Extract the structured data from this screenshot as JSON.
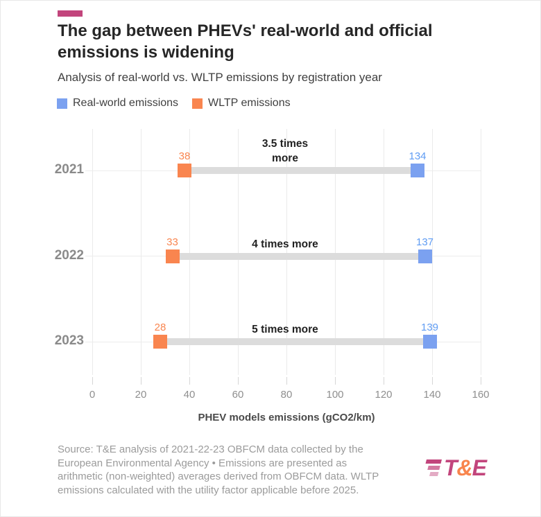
{
  "header": {
    "title": "The gap between PHEVs' real-world and official\nemissions is widening",
    "subtitle": "Analysis of real-world vs. WLTP emissions by registration year"
  },
  "legend": {
    "items": [
      {
        "label": "Real-world emissions",
        "color": "#7ba1f0"
      },
      {
        "label": "WLTP emissions",
        "color": "#f9854f"
      }
    ]
  },
  "chart_data": {
    "type": "dumbbell-bar",
    "categories": [
      "2021",
      "2022",
      "2023"
    ],
    "series": [
      {
        "name": "Real-world emissions",
        "color": "#7ba1f0",
        "label_color": "#5f9cf3",
        "values": [
          134,
          137,
          139
        ]
      },
      {
        "name": "WLTP emissions",
        "color": "#f9854f",
        "label_color": "#f9854f",
        "values": [
          38,
          33,
          28
        ]
      }
    ],
    "annotations": [
      "3.5 times\nmore",
      "4 times more",
      "5 times more"
    ],
    "xlabel": "PHEV models emissions (gCO2/km)",
    "xticks": [
      0,
      20,
      40,
      60,
      80,
      100,
      120,
      140,
      160
    ],
    "xlim": [
      0,
      160
    ],
    "grid": true,
    "legend_position": "top"
  },
  "footer": {
    "source": "Source: T&E analysis of 2021-22-23 OBFCM data collected by the\nEuropean Environmental Agency • Emissions are presented as\narithmetic (non-weighted) averages derived from OBFCM data. WLTP\nemissions calculated with the utility factor applicable before 2025.",
    "logo": {
      "t": "T",
      "amp": "&",
      "e": "E"
    }
  },
  "colors": {
    "accent": "#c2457c",
    "logo_pink": "#c2457c",
    "logo_orange": "#f8854d",
    "connector": "#dcdcdc",
    "gridline": "#eaeaea"
  }
}
